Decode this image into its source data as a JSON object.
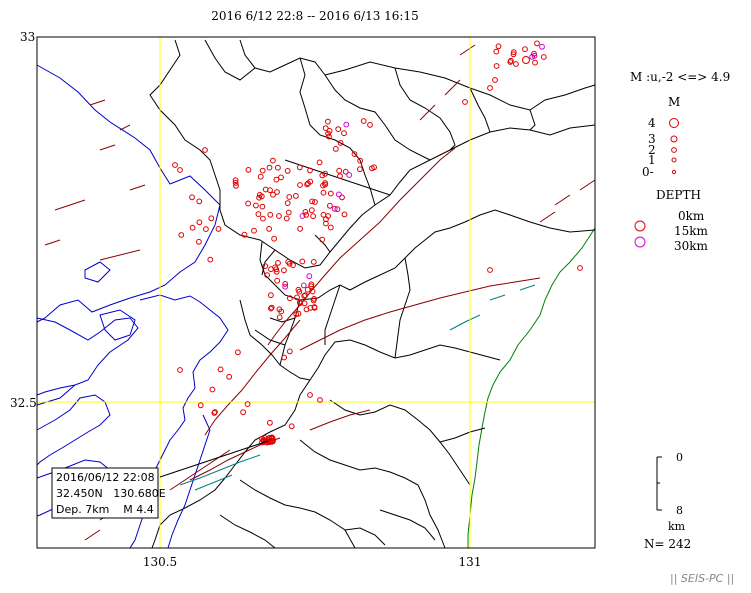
{
  "title": "2016 6/12 22:8 -- 2016 6/13 16:15",
  "axes": {
    "lat_top": "33",
    "lat_mid": "32.5",
    "lon_left": "130.5",
    "lon_right": "131"
  },
  "legend": {
    "magnitude_range": "M :u,-2 <=> 4.9",
    "magnitude_title": "M",
    "magnitude_labels": [
      "4",
      "3",
      "2",
      "1",
      "0-"
    ],
    "depth_title": "DEPTH",
    "depth_labels": [
      "0km",
      "15km",
      "30km"
    ],
    "depth_colors": [
      "#e00000",
      "#e00000",
      "#d000d0"
    ],
    "scale_top": "0",
    "scale_bottom": "8",
    "scale_unit": "km",
    "count": "N= 242"
  },
  "popup": {
    "line1": "2016/06/12 22:08",
    "line2": "32.450N   130.680E",
    "line3": "Dep. 7km    M 4.4"
  },
  "credit": "|| SEIS-PC ||",
  "colors": {
    "grid": "#ffff00",
    "coast": "#0000cc",
    "border": "#000000",
    "fault": "#8b0000",
    "fault_alt": "#008080",
    "coast_green": "#008000",
    "quake_shallow": "#e00000",
    "quake_deep": "#d000d0"
  },
  "icons": {
    "epicenter": "circle-icon"
  }
}
